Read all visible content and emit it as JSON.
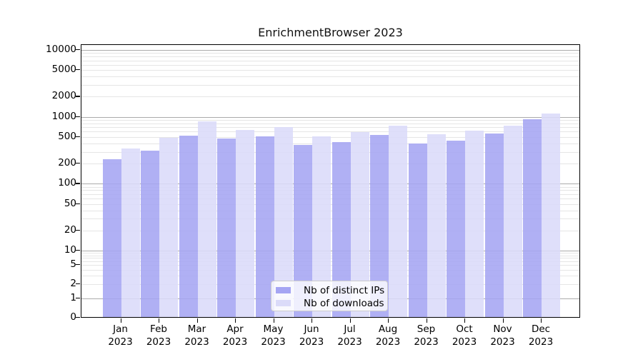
{
  "title": "EnrichmentBrowser 2023",
  "chart_data": {
    "type": "bar",
    "title": "EnrichmentBrowser 2023",
    "y_scale": "symlog",
    "ylim": [
      0,
      10000
    ],
    "grid": "on",
    "legend_position": "lower center",
    "categories": [
      "Jan",
      "Feb",
      "Mar",
      "Apr",
      "May",
      "Jun",
      "Jul",
      "Aug",
      "Sep",
      "Oct",
      "Nov",
      "Dec"
    ],
    "year": "2023",
    "y_ticks": [
      "10000",
      "5000",
      "2000",
      "1000",
      "500",
      "200",
      "100",
      "50",
      "20",
      "10",
      "5",
      "2",
      "1",
      "0"
    ],
    "series": [
      {
        "name": "Nb of distinct IPs",
        "color": "#a5a5f3",
        "values": [
          230,
          305,
          515,
          460,
          500,
          370,
          410,
          520,
          395,
          430,
          550,
          910
        ]
      },
      {
        "name": "Nb of downloads",
        "color": "#dbdbf9",
        "values": [
          330,
          470,
          840,
          615,
          680,
          505,
          580,
          730,
          535,
          610,
          730,
          1100
        ]
      }
    ]
  }
}
